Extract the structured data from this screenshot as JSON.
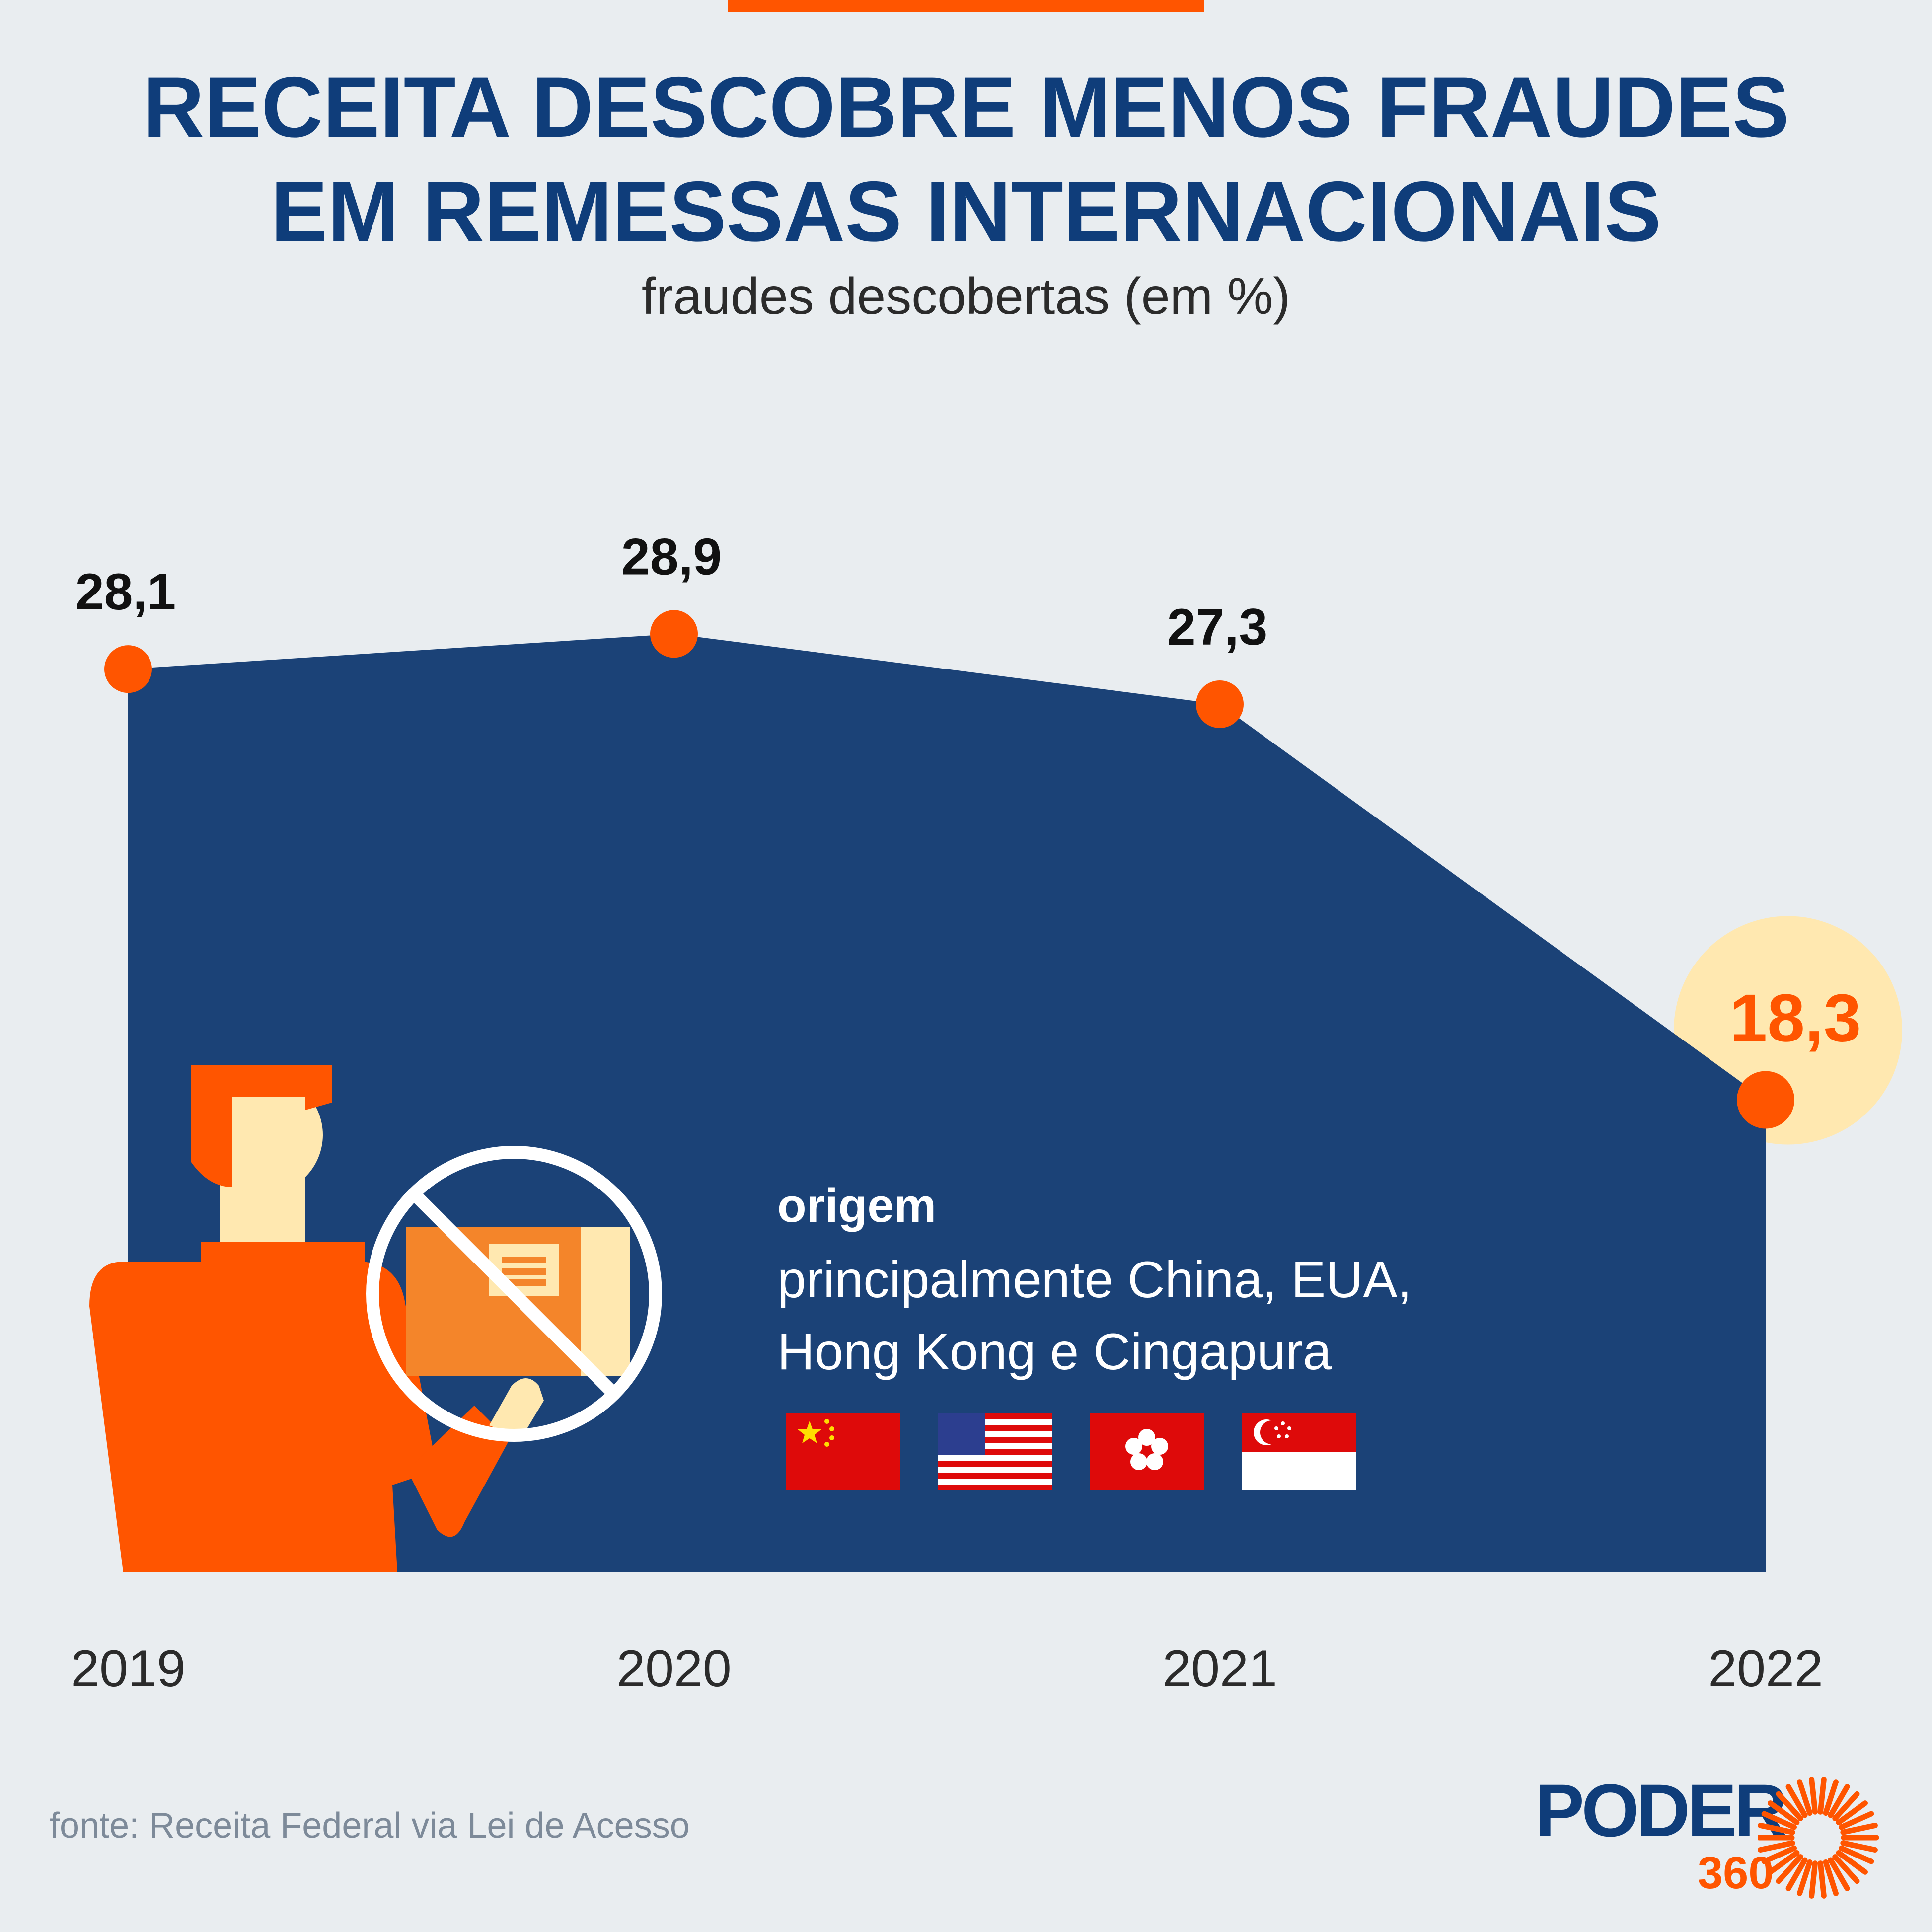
{
  "header": {
    "title_line1": "RECEITA DESCOBRE MENOS FRAUDES",
    "title_line2": "EM REMESSAS INTERNACIONAIS",
    "subtitle": "fraudes descobertas (em %)"
  },
  "chart_data": {
    "type": "area",
    "title": "RECEITA DESCOBRE MENOS FRAUDES EM REMESSAS INTERNACIONAIS",
    "subtitle": "fraudes descobertas (em %)",
    "categories": [
      "2019",
      "2020",
      "2021",
      "2022"
    ],
    "series": [
      {
        "values": [
          28.1,
          28.9,
          27.3,
          18.3
        ]
      }
    ],
    "data_labels": [
      "28,1",
      "28,9",
      "27,3",
      "18,3"
    ],
    "highlight_index": 3,
    "ylim": [
      0,
      29
    ],
    "grid": false,
    "colors": {
      "area": "#1b4277",
      "marker": "#ff5500",
      "highlight_bg": "#ffe8b0",
      "highlight_text": "#ff5500"
    }
  },
  "annotation": {
    "heading": "origem",
    "line1": "principalmente China, EUA,",
    "line2": "Hong Kong e Cingapura",
    "flags": [
      "china-flag",
      "usa-flag",
      "hong-kong-flag",
      "singapore-flag"
    ]
  },
  "illustration": {
    "name": "person-holding-prohibited-package"
  },
  "footer": {
    "source": "fonte: Receita Federal via Lei de Acesso"
  },
  "logo": {
    "word": "PODER",
    "number": "360"
  },
  "colors": {
    "background": "#e9edf0",
    "title": "#0f3d7a",
    "accent": "#ff5500"
  }
}
